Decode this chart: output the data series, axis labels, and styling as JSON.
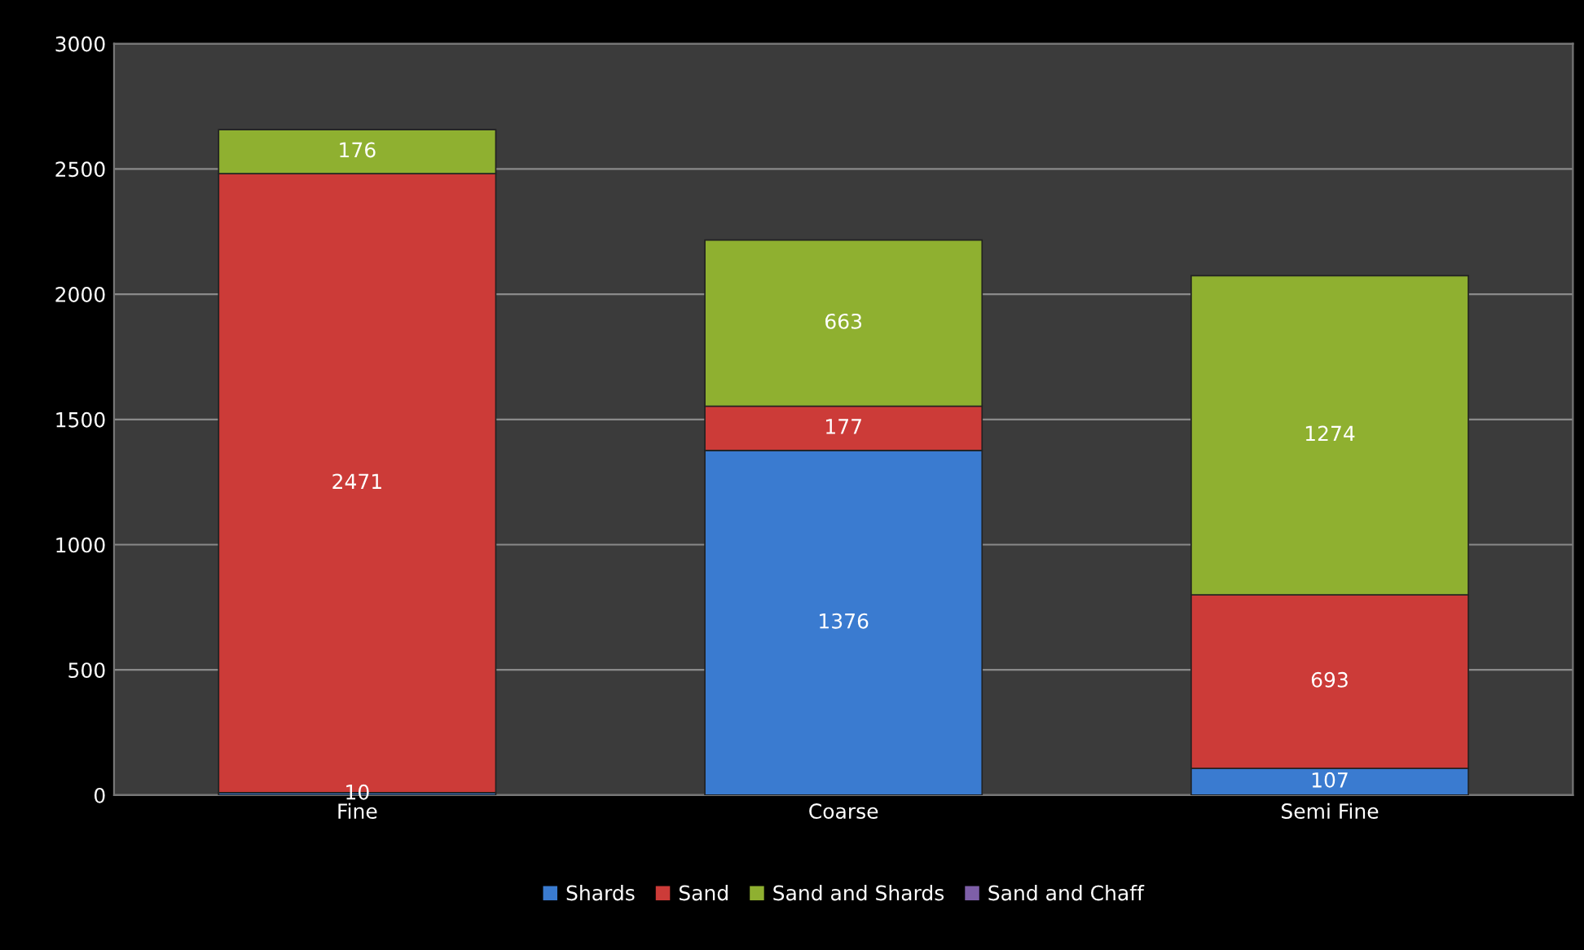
{
  "chart_data": {
    "type": "bar",
    "stacked": true,
    "categories": [
      "Fine",
      "Coarse",
      "Semi Fine"
    ],
    "series": [
      {
        "name": "Shards",
        "color": "#3a7bd0",
        "values": [
          10,
          1376,
          107
        ]
      },
      {
        "name": "Sand",
        "color": "#cc3b38",
        "values": [
          2471,
          177,
          693
        ]
      },
      {
        "name": "Sand and Shards",
        "color": "#8fb030",
        "values": [
          176,
          663,
          1274
        ]
      },
      {
        "name": "Sand and Chaff",
        "color": "#7e5fa8",
        "values": [
          null,
          null,
          null
        ]
      }
    ],
    "ylim": [
      0,
      3000
    ],
    "yticks": [
      0,
      500,
      1000,
      1500,
      2000,
      2500,
      3000
    ],
    "grid": "y",
    "legend": "bottom",
    "data_labels": true
  }
}
